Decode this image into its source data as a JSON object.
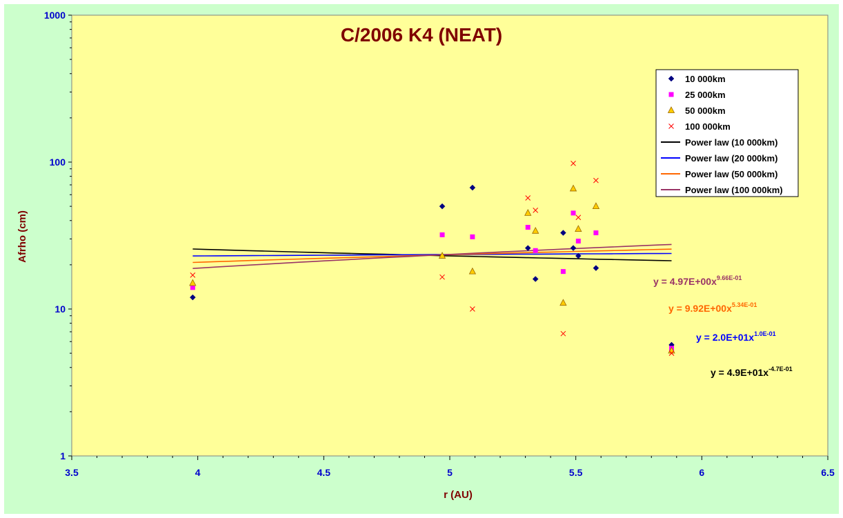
{
  "chart_data": {
    "type": "scatter",
    "title": "C/2006 K4 (NEAT)",
    "xlabel": "r (AU)",
    "ylabel": "Afrho (cm)",
    "xlim": [
      3.5,
      6.5
    ],
    "ylim": [
      1,
      1000
    ],
    "yscale": "log",
    "x_ticks": [
      "3.5",
      "4",
      "4.5",
      "5",
      "5.5",
      "6",
      "6.5"
    ],
    "y_ticks": [
      "1",
      "10",
      "100",
      "1000"
    ],
    "plot_background": "#ffff99",
    "legend_position": "right",
    "series": [
      {
        "name": "10 000km",
        "marker": "diamond",
        "color": "#000080",
        "points": [
          [
            3.98,
            12
          ],
          [
            4.97,
            50
          ],
          [
            5.09,
            67
          ],
          [
            5.31,
            26
          ],
          [
            5.34,
            16
          ],
          [
            5.45,
            33
          ],
          [
            5.49,
            26
          ],
          [
            5.51,
            23
          ],
          [
            5.58,
            19
          ],
          [
            5.88,
            5.7
          ]
        ]
      },
      {
        "name": "25 000km",
        "marker": "square",
        "color": "#ff00ff",
        "points": [
          [
            3.98,
            14
          ],
          [
            4.97,
            32
          ],
          [
            5.09,
            31
          ],
          [
            5.31,
            36
          ],
          [
            5.34,
            25
          ],
          [
            5.45,
            18
          ],
          [
            5.49,
            45
          ],
          [
            5.51,
            29
          ],
          [
            5.58,
            33
          ],
          [
            5.88,
            5.4
          ]
        ]
      },
      {
        "name": "50 000km",
        "marker": "triangle",
        "color": "#ffcc00",
        "points": [
          [
            3.98,
            15
          ],
          [
            4.97,
            23
          ],
          [
            5.09,
            18
          ],
          [
            5.31,
            45
          ],
          [
            5.34,
            34
          ],
          [
            5.45,
            11
          ],
          [
            5.49,
            66
          ],
          [
            5.51,
            35
          ],
          [
            5.58,
            50
          ],
          [
            5.88,
            5.2
          ]
        ]
      },
      {
        "name": "100 000km",
        "marker": "x",
        "color": "#ff0000",
        "points": [
          [
            3.98,
            17
          ],
          [
            4.97,
            16.5
          ],
          [
            5.09,
            10
          ],
          [
            5.31,
            57
          ],
          [
            5.34,
            47
          ],
          [
            5.45,
            6.8
          ],
          [
            5.49,
            98
          ],
          [
            5.51,
            42
          ],
          [
            5.58,
            75
          ],
          [
            5.88,
            5
          ]
        ]
      }
    ],
    "trendlines": [
      {
        "name": "Power law (10 000km)",
        "color": "#000000",
        "a": 49,
        "b": -0.47,
        "x_range": [
          3.98,
          5.88
        ],
        "equation": "y = 4.9E+01x",
        "exponent": "-4.7E-01"
      },
      {
        "name": "Power law (20 000km)",
        "color": "#0000ff",
        "a": 20,
        "b": 0.1,
        "x_range": [
          3.98,
          5.88
        ],
        "equation": "y = 2.0E+01x",
        "exponent": "1.0E-01"
      },
      {
        "name": "Power law (50 000km)",
        "color": "#ff6600",
        "a": 9.92,
        "b": 0.534,
        "x_range": [
          3.98,
          5.88
        ],
        "equation": "y = 9.92E+00x",
        "exponent": "5.34E-01"
      },
      {
        "name": "Power law (100 000km)",
        "color": "#993366",
        "a": 4.97,
        "b": 0.966,
        "x_range": [
          3.98,
          5.88
        ],
        "equation": "y = 4.97E+00x",
        "exponent": "9.66E-01"
      }
    ]
  }
}
